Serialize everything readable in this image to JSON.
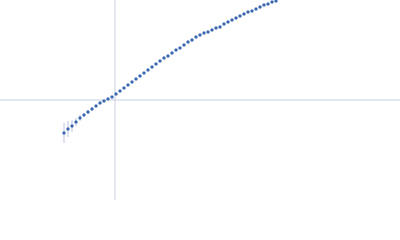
{
  "chart_data": {
    "type": "scatter",
    "xlim": [
      -115,
      285
    ],
    "ylim": [
      -100,
      100
    ],
    "color": "#3a67b0",
    "error_color": "#b8c4d8",
    "axis_color": "#c8d2e0",
    "x": [
      -51,
      -47,
      -43,
      -39,
      -35,
      -31,
      -27,
      -23,
      -19,
      -15,
      -11,
      -7,
      -3,
      1,
      5,
      9,
      13,
      17,
      21,
      25,
      29,
      33,
      37,
      41,
      45,
      49,
      53,
      57,
      61,
      65,
      69,
      73,
      77,
      81,
      85,
      89,
      93,
      97,
      101,
      105,
      109,
      113,
      117,
      121,
      125,
      129,
      133,
      137,
      141,
      145,
      149,
      153,
      157,
      161
    ],
    "values": [
      -33,
      -29,
      -26,
      -22,
      -18,
      -15,
      -12,
      -9,
      -6,
      -3,
      -1,
      1,
      3,
      6,
      9,
      12,
      15,
      18,
      21,
      24,
      27,
      30,
      33,
      36,
      39,
      42,
      44,
      47,
      50,
      52,
      55,
      58,
      60,
      63,
      65,
      67,
      68,
      70,
      72,
      73,
      76,
      78,
      80,
      82,
      84,
      86,
      88,
      89,
      91,
      93,
      95,
      96,
      98,
      99
    ],
    "errors": [
      10,
      8,
      6,
      4,
      3,
      2,
      2,
      2,
      1.5,
      1.5,
      1.5,
      1.5,
      1.5,
      1.5,
      1.5,
      1.5,
      1.5,
      1.5,
      1.5,
      1.5,
      1.5,
      1.5,
      1.5,
      1.5,
      1.5,
      1.5,
      1.5,
      1.5,
      1.5,
      1.5,
      1.5,
      1.5,
      1.5,
      1.5,
      1.5,
      1.5,
      1.5,
      1.5,
      1.5,
      1.5,
      1.5,
      1.5,
      1.5,
      1.5,
      1.5,
      1.5,
      1.5,
      1.5,
      1.5,
      1.5,
      1.5,
      1.5,
      1.5,
      1.5
    ]
  }
}
